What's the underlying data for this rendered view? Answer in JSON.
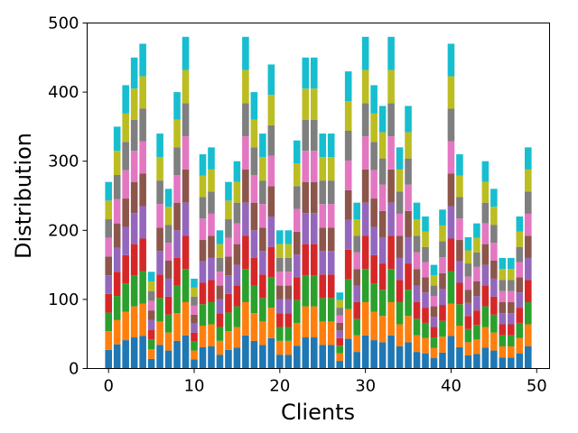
{
  "chart_data": {
    "type": "bar",
    "stacked": true,
    "xlabel": "Clients",
    "ylabel": "Distribution",
    "xlim": [
      -2.5,
      51.5
    ],
    "ylim": [
      0,
      500
    ],
    "xticks": [
      0,
      10,
      20,
      30,
      40,
      50
    ],
    "yticks": [
      0,
      100,
      200,
      300,
      400,
      500
    ],
    "grid": false,
    "legend": "none",
    "bar_width": 0.8,
    "series_colors": [
      "#1f77b4",
      "#ff7f0e",
      "#2ca02c",
      "#d62728",
      "#9467bd",
      "#8c564b",
      "#e377c2",
      "#7f7f7f",
      "#bcbd22",
      "#17becf"
    ],
    "totals": [
      270,
      350,
      410,
      450,
      470,
      140,
      340,
      260,
      400,
      480,
      130,
      310,
      320,
      200,
      270,
      300,
      480,
      400,
      340,
      440,
      200,
      200,
      330,
      450,
      450,
      340,
      340,
      110,
      430,
      240,
      480,
      410,
      380,
      480,
      320,
      380,
      240,
      220,
      150,
      230,
      470,
      310,
      190,
      210,
      300,
      260,
      160,
      160,
      220,
      320
    ]
  }
}
